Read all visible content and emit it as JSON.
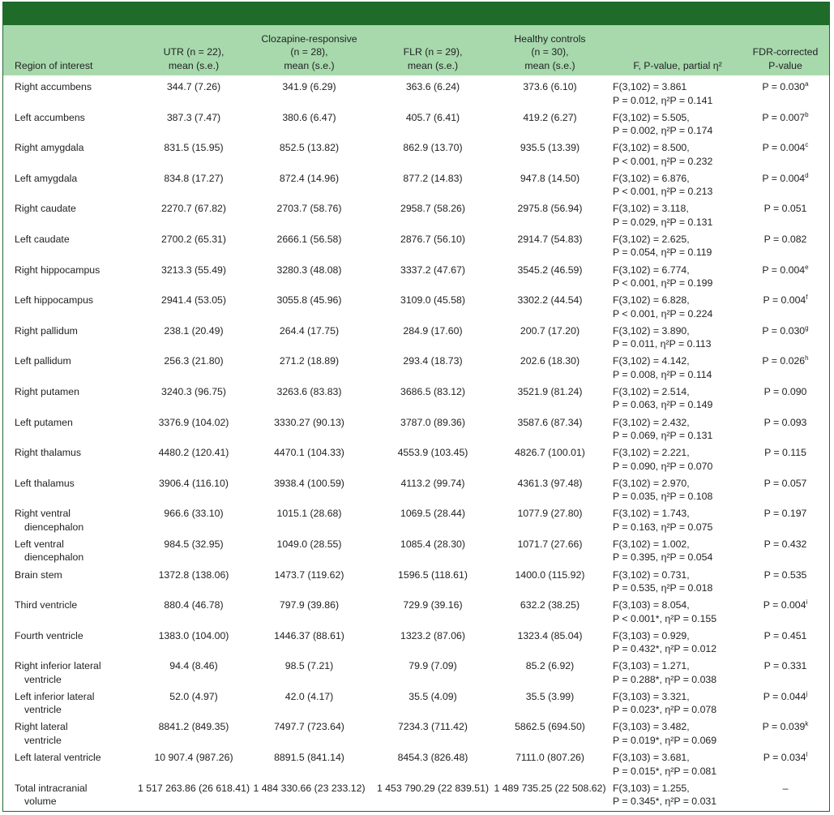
{
  "headers": {
    "region": "Region of interest",
    "utr": [
      "UTR (n = 22),",
      "mean (s.e.)"
    ],
    "clozapine": [
      "Clozapine-responsive",
      "(n = 28),",
      "mean (s.e.)"
    ],
    "flr": [
      "FLR (n = 29),",
      "mean (s.e.)"
    ],
    "healthy": [
      "Healthy controls",
      "(n = 30),",
      "mean (s.e.)"
    ],
    "stats": "F, P-value, partial η²",
    "fdr": [
      "FDR-corrected",
      "P-value"
    ]
  },
  "rows": [
    {
      "region": [
        "Right accumbens"
      ],
      "utr": "344.7 (7.26)",
      "cloz": "341.9 (6.29)",
      "flr": "363.6 (6.24)",
      "hc": "373.6 (6.10)",
      "f1": "F(3,102) = 3.861",
      "f2": "P = 0.012, η²P = 0.141",
      "fdr": "P = 0.030",
      "sup": "a"
    },
    {
      "region": [
        "Left accumbens"
      ],
      "utr": "387.3 (7.47)",
      "cloz": "380.6 (6.47)",
      "flr": "405.7 (6.41)",
      "hc": "419.2 (6.27)",
      "f1": "F(3,102) = 5.505,",
      "f2": "P = 0.002, η²P = 0.174",
      "fdr": "P = 0.007",
      "sup": "b"
    },
    {
      "region": [
        "Right amygdala"
      ],
      "utr": "831.5 (15.95)",
      "cloz": "852.5 (13.82)",
      "flr": "862.9 (13.70)",
      "hc": "935.5 (13.39)",
      "f1": "F(3,102) = 8.500,",
      "f2": "P  < 0.001, η²P = 0.232",
      "fdr": "P = 0.004",
      "sup": "c"
    },
    {
      "region": [
        "Left amygdala"
      ],
      "utr": "834.8 (17.27)",
      "cloz": "872.4 (14.96)",
      "flr": "877.2 (14.83)",
      "hc": "947.8 (14.50)",
      "f1": "F(3,102) = 6.876,",
      "f2": "P  < 0.001, η²P = 0.213",
      "fdr": "P = 0.004",
      "sup": "d"
    },
    {
      "region": [
        "Right caudate"
      ],
      "utr": "2270.7 (67.82)",
      "cloz": "2703.7 (58.76)",
      "flr": "2958.7 (58.26)",
      "hc": "2975.8 (56.94)",
      "f1": "F(3,102) = 3.118,",
      "f2": "P = 0.029, η²P = 0.131",
      "fdr": "P = 0.051",
      "sup": ""
    },
    {
      "region": [
        "Left caudate"
      ],
      "utr": "2700.2 (65.31)",
      "cloz": "2666.1 (56.58)",
      "flr": "2876.7 (56.10)",
      "hc": "2914.7 (54.83)",
      "f1": "F(3,102) = 2.625,",
      "f2": "P = 0.054, η²P = 0.119",
      "fdr": "P = 0.082",
      "sup": ""
    },
    {
      "region": [
        "Right hippocampus"
      ],
      "utr": "3213.3 (55.49)",
      "cloz": "3280.3 (48.08)",
      "flr": "3337.2 (47.67)",
      "hc": "3545.2 (46.59)",
      "f1": "F(3,102) = 6.774,",
      "f2": "P  < 0.001, η²P = 0.199",
      "fdr": "P = 0.004",
      "sup": "e"
    },
    {
      "region": [
        "Left hippocampus"
      ],
      "utr": "2941.4 (53.05)",
      "cloz": "3055.8 (45.96)",
      "flr": "3109.0 (45.58)",
      "hc": "3302.2 (44.54)",
      "f1": "F(3,102) = 6.828,",
      "f2": "P  < 0.001, η²P = 0.224",
      "fdr": "P = 0.004",
      "sup": "f"
    },
    {
      "region": [
        "Right pallidum"
      ],
      "utr": "238.1 (20.49)",
      "cloz": "264.4 (17.75)",
      "flr": "284.9 (17.60)",
      "hc": "200.7 (17.20)",
      "f1": "F(3,102) = 3.890,",
      "f2": "P = 0.011, η²P = 0.113",
      "fdr": "P = 0.030",
      "sup": "g"
    },
    {
      "region": [
        "Left pallidum"
      ],
      "utr": "256.3 (21.80)",
      "cloz": "271.2 (18.89)",
      "flr": "293.4 (18.73)",
      "hc": "202.6 (18.30)",
      "f1": "F(3,102) = 4.142,",
      "f2": "P = 0.008, η²P = 0.114",
      "fdr": "P = 0.026",
      "sup": "h"
    },
    {
      "region": [
        "Right putamen"
      ],
      "utr": "3240.3 (96.75)",
      "cloz": "3263.6 (83.83)",
      "flr": "3686.5 (83.12)",
      "hc": "3521.9 (81.24)",
      "f1": "F(3,102) = 2.514,",
      "f2": "P = 0.063, η²P = 0.149",
      "fdr": "P = 0.090",
      "sup": ""
    },
    {
      "region": [
        "Left putamen"
      ],
      "utr": "3376.9 (104.02)",
      "cloz": "3330.27 (90.13)",
      "flr": "3787.0 (89.36)",
      "hc": "3587.6 (87.34)",
      "f1": "F(3,102) = 2.432,",
      "f2": "P = 0.069, η²P = 0.131",
      "fdr": "P = 0.093",
      "sup": ""
    },
    {
      "region": [
        "Right thalamus"
      ],
      "utr": "4480.2 (120.41)",
      "cloz": "4470.1 (104.33)",
      "flr": "4553.9 (103.45)",
      "hc": "4826.7 (100.01)",
      "f1": "F(3,102) = 2.221,",
      "f2": "P = 0.090, η²P = 0.070",
      "fdr": "P = 0.115",
      "sup": ""
    },
    {
      "region": [
        "Left thalamus"
      ],
      "utr": "3906.4 (116.10)",
      "cloz": "3938.4 (100.59)",
      "flr": "4113.2 (99.74)",
      "hc": "4361.3 (97.48)",
      "f1": "F(3,102) = 2.970,",
      "f2": "P = 0.035, η²P = 0.108",
      "fdr": "P = 0.057",
      "sup": ""
    },
    {
      "region": [
        "Right ventral",
        "diencephalon"
      ],
      "utr": "966.6 (33.10)",
      "cloz": "1015.1 (28.68)",
      "flr": "1069.5 (28.44)",
      "hc": "1077.9 (27.80)",
      "f1": "F(3,102) = 1.743,",
      "f2": "P = 0.163, η²P = 0.075",
      "fdr": "P = 0.197",
      "sup": ""
    },
    {
      "region": [
        "Left ventral",
        "diencephalon"
      ],
      "utr": "984.5 (32.95)",
      "cloz": "1049.0 (28.55)",
      "flr": "1085.4 (28.30)",
      "hc": "1071.7 (27.66)",
      "f1": "F(3,102) = 1.002,",
      "f2": "P = 0.395, η²P = 0.054",
      "fdr": "P = 0.432",
      "sup": ""
    },
    {
      "region": [
        "Brain stem"
      ],
      "utr": "1372.8 (138.06)",
      "cloz": "1473.7 (119.62)",
      "flr": "1596.5 (118.61)",
      "hc": "1400.0 (115.92)",
      "f1": "F(3,102) = 0.731,",
      "f2": "P = 0.535, η²P = 0.018",
      "fdr": "P = 0.535",
      "sup": ""
    },
    {
      "region": [
        "Third ventricle"
      ],
      "utr": "880.4 (46.78)",
      "cloz": "797.9 (39.86)",
      "flr": "729.9 (39.16)",
      "hc": "632.2 (38.25)",
      "f1": "F(3,103) = 8.054,",
      "f2": "P  < 0.001*, η²P = 0.155",
      "fdr": "P = 0.004",
      "sup": "i"
    },
    {
      "region": [
        "Fourth ventricle"
      ],
      "utr": "1383.0 (104.00)",
      "cloz": "1446.37 (88.61)",
      "flr": "1323.2 (87.06)",
      "hc": "1323.4 (85.04)",
      "f1": "F(3,103) = 0.929,",
      "f2": "P = 0.432*, η²P = 0.012",
      "fdr": "P = 0.451",
      "sup": ""
    },
    {
      "region": [
        "Right inferior lateral",
        "ventricle"
      ],
      "utr": "94.4 (8.46)",
      "cloz": "98.5 (7.21)",
      "flr": "79.9 (7.09)",
      "hc": "85.2 (6.92)",
      "f1": "F(3,103) = 1.271,",
      "f2": "P = 0.288*, η²P = 0.038",
      "fdr": "P = 0.331",
      "sup": ""
    },
    {
      "region": [
        "Left inferior lateral",
        "ventricle"
      ],
      "utr": "52.0 (4.97)",
      "cloz": "42.0 (4.17)",
      "flr": "35.5 (4.09)",
      "hc": "35.5 (3.99)",
      "f1": "F(3,103) = 3.321,",
      "f2": "P = 0.023*, η²P = 0.078",
      "fdr": "P = 0.044",
      "sup": "j"
    },
    {
      "region": [
        "Right lateral",
        "ventricle"
      ],
      "utr": "8841.2 (849.35)",
      "cloz": "7497.7 (723.64)",
      "flr": "7234.3 (711.42)",
      "hc": "5862.5 (694.50)",
      "f1": "F(3,103) = 3.482,",
      "f2": "P = 0.019*, η²P = 0.069",
      "fdr": "P = 0.039",
      "sup": "k"
    },
    {
      "region": [
        "Left lateral ventricle"
      ],
      "utr": "10 907.4 (987.26)",
      "cloz": "8891.5 (841.14)",
      "flr": "8454.3 (826.48)",
      "hc": "7111.0 (807.26)",
      "f1": "F(3,103) = 3.681,",
      "f2": "P = 0.015*, η²P = 0.081",
      "fdr": "P = 0.034",
      "sup": "l"
    },
    {
      "region": [
        "Total intracranial",
        "volume"
      ],
      "utr": "1 517 263.86 (26 618.41)",
      "cloz": "1 484 330.66 (23 233.12)",
      "flr": "1 453 790.29 (22 839.51)",
      "hc": "1 489 735.25 (22 508.62)",
      "f1": "F(3,103) = 1.255,",
      "f2": "P = 0.345*, η²P = 0.031",
      "fdr": "–",
      "sup": ""
    }
  ]
}
